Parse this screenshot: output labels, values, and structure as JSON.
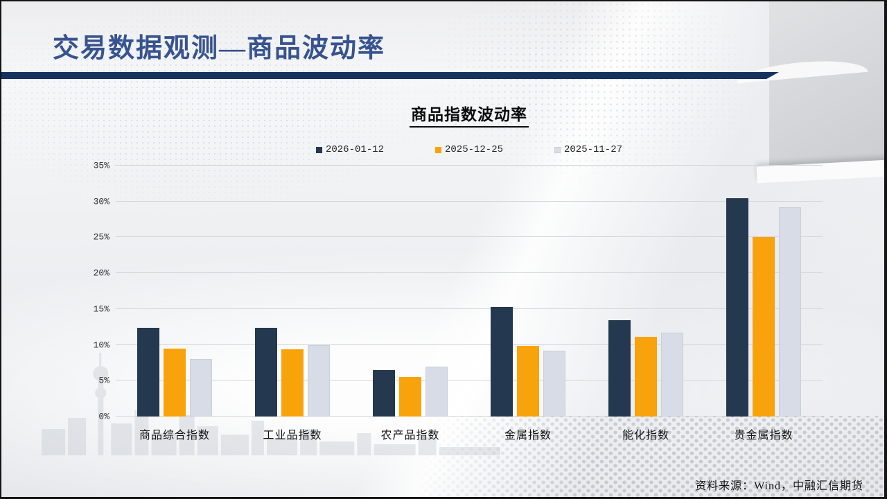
{
  "slide": {
    "title": "交易数据观测—商品波动率",
    "source": "资料来源：Wind，中融汇信期货"
  },
  "colors": {
    "title_blue": "#37538f",
    "divider_navy": "#16335e",
    "series_navy": "#24384f",
    "series_orange": "#f9a30c",
    "series_gray": "#d7dce6"
  },
  "chart_data": {
    "type": "bar",
    "title": "商品指数波动率",
    "categories": [
      "商品综合指数",
      "工业品指数",
      "农产品指数",
      "金属指数",
      "能化指数",
      "贵金属指数"
    ],
    "series": [
      {
        "name": "2026-01-12",
        "color": "#24384f",
        "values": [
          12.4,
          12.4,
          6.5,
          15.3,
          13.4,
          30.5
        ]
      },
      {
        "name": "2025-12-25",
        "color": "#f9a30c",
        "values": [
          9.5,
          9.4,
          5.5,
          9.9,
          11.1,
          25.0
        ]
      },
      {
        "name": "2025-11-27",
        "color": "#d7dce6",
        "border": "#c9cfda",
        "values": [
          8.0,
          10.0,
          7.0,
          9.2,
          11.7,
          29.2
        ]
      }
    ],
    "xlabel": "",
    "ylabel": "",
    "ylim": [
      0,
      35
    ],
    "y_tick_step": 5,
    "y_ticks": [
      "0%",
      "5%",
      "10%",
      "15%",
      "20%",
      "25%",
      "30%",
      "35%"
    ],
    "grid": true,
    "legend_position": "top"
  }
}
